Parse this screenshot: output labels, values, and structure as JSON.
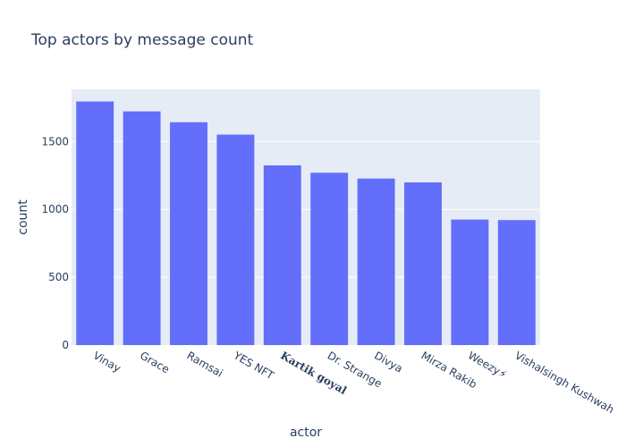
{
  "chart_data": {
    "type": "bar",
    "title": "Top actors by message count",
    "xlabel": "actor",
    "ylabel": "count",
    "categories": [
      "Vinay",
      "Grace",
      "Ramsai",
      "YES NFT",
      "𝐊𝐚𝐫𝐭𝐢𝐤 𝐠𝐨𝐲𝐚𝐥",
      "Dr. Strange",
      "Divya",
      "Mirza Rakib",
      "Weezy⚡",
      "Vishalsingh Kushwah"
    ],
    "values": [
      1795,
      1722,
      1642,
      1551,
      1324,
      1270,
      1227,
      1199,
      925,
      921
    ],
    "ylim": [
      0,
      1884
    ],
    "yticks": [
      0,
      500,
      1000,
      1500
    ],
    "ytick_labels": [
      "0",
      "500",
      "1000",
      "1500"
    ],
    "grid": true,
    "colors": {
      "bar": "#636efa",
      "plot_bg": "#e5ecf6",
      "grid": "#ffffff",
      "text": "#2a3f5f"
    }
  }
}
